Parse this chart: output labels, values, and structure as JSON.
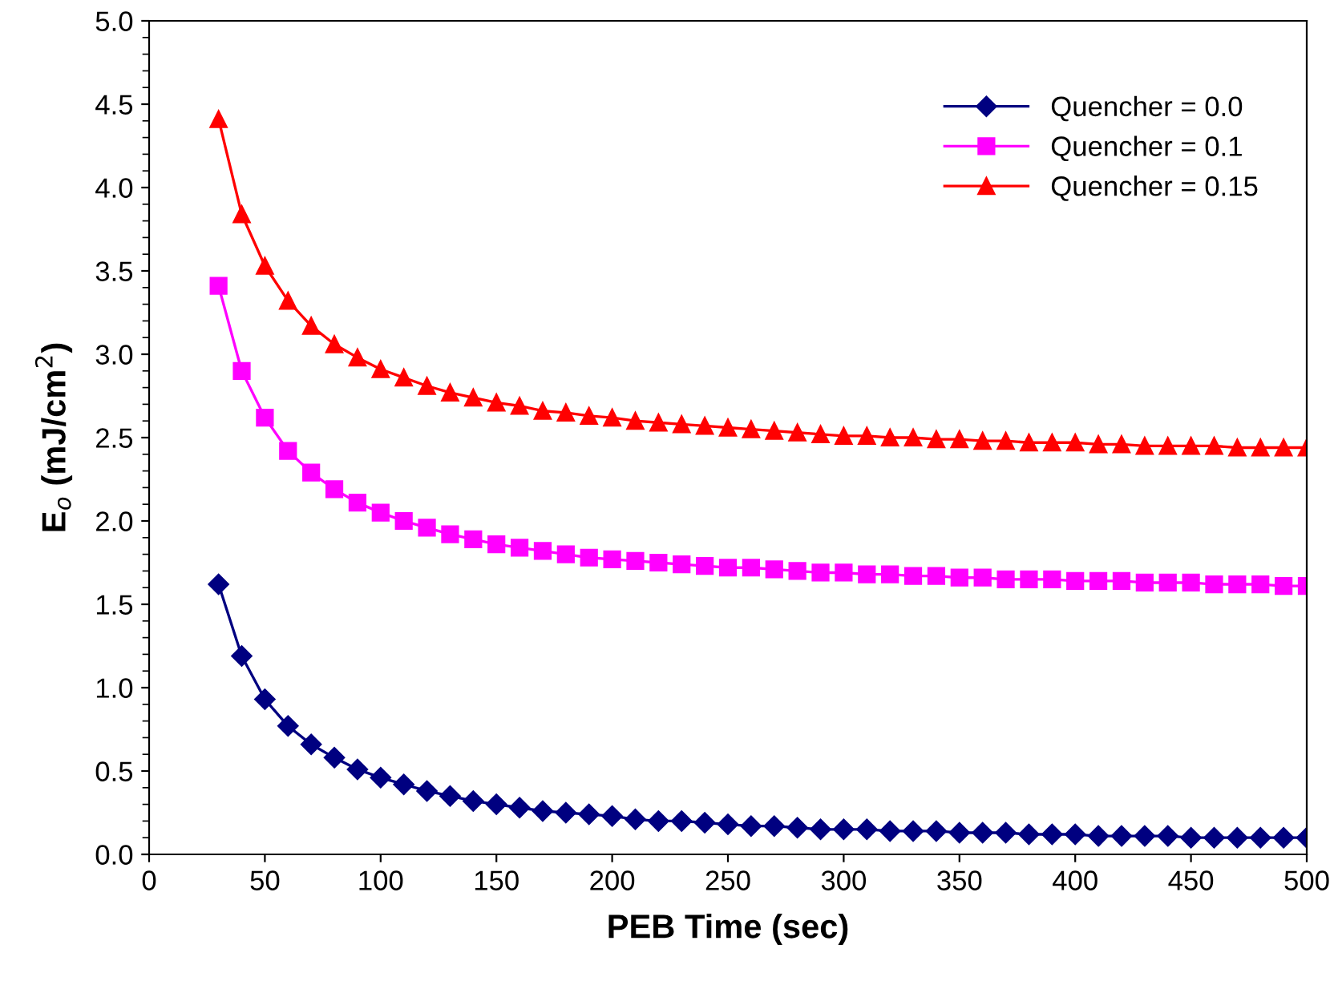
{
  "chart_data": {
    "type": "line",
    "xlabel": "PEB Time (sec)",
    "ylabel": "E$_{o}$ (mJ/cm$^{2}$)",
    "x": [
      30,
      40,
      50,
      60,
      70,
      80,
      90,
      100,
      110,
      120,
      130,
      140,
      150,
      160,
      170,
      180,
      190,
      200,
      210,
      220,
      230,
      240,
      250,
      260,
      270,
      280,
      290,
      300,
      310,
      320,
      330,
      340,
      350,
      360,
      370,
      380,
      390,
      400,
      410,
      420,
      430,
      440,
      450,
      460,
      470,
      480,
      490,
      500
    ],
    "series": [
      {
        "name": "Quencher = 0.0",
        "color": "#000080",
        "marker": "diamond",
        "values": [
          1.62,
          1.19,
          0.93,
          0.77,
          0.66,
          0.58,
          0.51,
          0.46,
          0.42,
          0.38,
          0.35,
          0.32,
          0.3,
          0.28,
          0.26,
          0.25,
          0.24,
          0.23,
          0.21,
          0.2,
          0.2,
          0.19,
          0.18,
          0.17,
          0.17,
          0.16,
          0.15,
          0.15,
          0.15,
          0.14,
          0.14,
          0.14,
          0.13,
          0.13,
          0.13,
          0.12,
          0.12,
          0.12,
          0.11,
          0.11,
          0.11,
          0.11,
          0.1,
          0.1,
          0.1,
          0.1,
          0.1,
          0.1
        ]
      },
      {
        "name": "Quencher = 0.1",
        "color": "#ff00ff",
        "marker": "square",
        "values": [
          3.41,
          2.9,
          2.62,
          2.42,
          2.29,
          2.19,
          2.11,
          2.05,
          2.0,
          1.96,
          1.92,
          1.89,
          1.86,
          1.84,
          1.82,
          1.8,
          1.78,
          1.77,
          1.76,
          1.75,
          1.74,
          1.73,
          1.72,
          1.72,
          1.71,
          1.7,
          1.69,
          1.69,
          1.68,
          1.68,
          1.67,
          1.67,
          1.66,
          1.66,
          1.65,
          1.65,
          1.65,
          1.64,
          1.64,
          1.64,
          1.63,
          1.63,
          1.63,
          1.62,
          1.62,
          1.62,
          1.61,
          1.61
        ]
      },
      {
        "name": "Quencher = 0.15",
        "color": "#ff0000",
        "marker": "triangle",
        "values": [
          4.41,
          3.84,
          3.53,
          3.32,
          3.17,
          3.06,
          2.98,
          2.91,
          2.86,
          2.81,
          2.77,
          2.74,
          2.71,
          2.69,
          2.66,
          2.65,
          2.63,
          2.62,
          2.6,
          2.59,
          2.58,
          2.57,
          2.56,
          2.55,
          2.54,
          2.53,
          2.52,
          2.51,
          2.51,
          2.5,
          2.5,
          2.49,
          2.49,
          2.48,
          2.48,
          2.47,
          2.47,
          2.47,
          2.46,
          2.46,
          2.45,
          2.45,
          2.45,
          2.45,
          2.44,
          2.44,
          2.44,
          2.44
        ]
      }
    ],
    "xlim": [
      0,
      500
    ],
    "xticks": [
      0,
      50,
      100,
      150,
      200,
      250,
      300,
      350,
      400,
      450,
      500
    ],
    "ylim": [
      0,
      5
    ],
    "yticks": [
      {
        "value": 0,
        "label": "0.0"
      },
      0.5,
      {
        "value": 1,
        "label": "1.0"
      },
      1.5,
      {
        "value": 2,
        "label": "2.0"
      },
      2.5,
      {
        "value": 3,
        "label": "3.0"
      },
      3.5,
      {
        "value": 4,
        "label": "4.0"
      },
      4.5,
      {
        "value": 5,
        "label": "5.0"
      }
    ],
    "grid": false,
    "legend": "top right",
    "line_style": "solid"
  }
}
